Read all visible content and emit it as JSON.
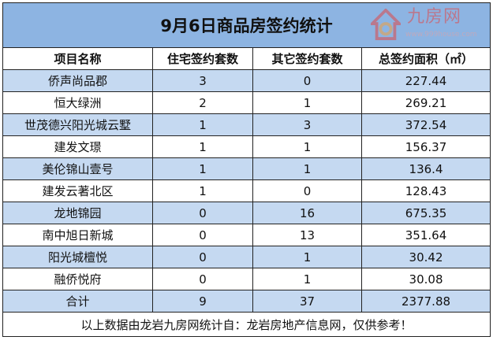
{
  "title": "9月6日商品房签约统计",
  "headers": [
    "项目名称",
    "住宅签约套数",
    "其它签约套数",
    "总签约面积（㎡）"
  ],
  "rows": [
    [
      "侨声尚品郡",
      "3",
      "0",
      "227.44"
    ],
    [
      "恒大绿洲",
      "2",
      "1",
      "269.21"
    ],
    [
      "世茂德兴阳光城云墅",
      "1",
      "3",
      "372.54"
    ],
    [
      "建发文璟",
      "1",
      "1",
      "156.37"
    ],
    [
      "美伦锦山壹号",
      "1",
      "1",
      "136.4"
    ],
    [
      "建发云著北区",
      "1",
      "0",
      "128.43"
    ],
    [
      "龙地锦园",
      "0",
      "16",
      "675.35"
    ],
    [
      "南中旭日新城",
      "0",
      "13",
      "351.64"
    ],
    [
      "阳光城檀悦",
      "0",
      "1",
      "30.42"
    ],
    [
      "融侨悦府",
      "0",
      "1",
      "30.08"
    ]
  ],
  "total": [
    "合计",
    "9",
    "37",
    "2377.88"
  ],
  "footer": "以上数据由龙岩九房网统计自：龙岩房地产信息网，仅供参考！",
  "watermark": {
    "text": "九房网",
    "url": "www.999house.com"
  },
  "colors": {
    "title_bg": "#8db4e2",
    "row_alt": "#c5d9f1",
    "watermark": "#e04848"
  }
}
